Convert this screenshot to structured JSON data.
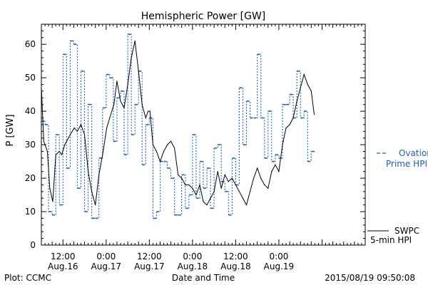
{
  "chart_data": {
    "type": "line",
    "title": "Hemispheric Power [GW]",
    "xlabel": "Date and Time",
    "ylabel": "P [GW]",
    "ylim": [
      0,
      66
    ],
    "xlim": [
      "2015-08-16T06:00",
      "2015-08-20T00:00"
    ],
    "yticks": [
      0,
      10,
      20,
      30,
      40,
      50,
      60
    ],
    "xticks": [
      {
        "t": "2015-08-16T12:00",
        "time": "12:00",
        "date": "Aug.16"
      },
      {
        "t": "2015-08-17T00:00",
        "time": "0:00",
        "date": "Aug.17"
      },
      {
        "t": "2015-08-17T12:00",
        "time": "12:00",
        "date": "Aug.17"
      },
      {
        "t": "2015-08-18T00:00",
        "time": "0:00",
        "date": "Aug.18"
      },
      {
        "t": "2015-08-18T12:00",
        "time": "12:00",
        "date": "Aug.18"
      },
      {
        "t": "2015-08-19T00:00",
        "time": "0:00",
        "date": "Aug.19"
      }
    ],
    "legend_placement": "right",
    "series": [
      {
        "name": "SWPC 5-min HPI",
        "style": "solid",
        "color": "#000000",
        "x": [
          "2015-08-16T06:00",
          "2015-08-16T06:40",
          "2015-08-16T07:40",
          "2015-08-16T08:20",
          "2015-08-16T09:10",
          "2015-08-16T10:00",
          "2015-08-16T11:00",
          "2015-08-16T11:40",
          "2015-08-16T12:30",
          "2015-08-16T14:00",
          "2015-08-16T15:10",
          "2015-08-16T16:00",
          "2015-08-16T17:00",
          "2015-08-16T18:00",
          "2015-08-16T19:00",
          "2015-08-16T20:00",
          "2015-08-16T21:00",
          "2015-08-16T22:00",
          "2015-08-16T23:10",
          "2015-08-17T00:10",
          "2015-08-17T01:00",
          "2015-08-17T02:10",
          "2015-08-17T03:00",
          "2015-08-17T04:00",
          "2015-08-17T05:00",
          "2015-08-17T06:00",
          "2015-08-17T07:00",
          "2015-08-17T08:00",
          "2015-08-17T09:00",
          "2015-08-17T10:00",
          "2015-08-17T11:00",
          "2015-08-17T11:40",
          "2015-08-17T12:10",
          "2015-08-17T13:00",
          "2015-08-17T14:00",
          "2015-08-17T15:00",
          "2015-08-17T16:00",
          "2015-08-17T17:00",
          "2015-08-17T18:00",
          "2015-08-17T19:00",
          "2015-08-17T20:00",
          "2015-08-17T21:00",
          "2015-08-17T22:00",
          "2015-08-17T23:00",
          "2015-08-18T00:00",
          "2015-08-18T01:00",
          "2015-08-18T02:00",
          "2015-08-18T03:00",
          "2015-08-18T04:00",
          "2015-08-18T05:00",
          "2015-08-18T06:00",
          "2015-08-18T07:00",
          "2015-08-18T08:00",
          "2015-08-18T09:00",
          "2015-08-18T10:00",
          "2015-08-18T11:00",
          "2015-08-18T12:00",
          "2015-08-18T13:00",
          "2015-08-18T14:00",
          "2015-08-18T15:00",
          "2015-08-18T16:00",
          "2015-08-18T17:00",
          "2015-08-18T18:00",
          "2015-08-18T19:00",
          "2015-08-18T20:00",
          "2015-08-18T21:00",
          "2015-08-18T22:00",
          "2015-08-18T23:00",
          "2015-08-19T00:00",
          "2015-08-19T01:00",
          "2015-08-19T02:00",
          "2015-08-19T03:00",
          "2015-08-19T04:00",
          "2015-08-19T05:00",
          "2015-08-19T06:00",
          "2015-08-19T07:00",
          "2015-08-19T08:00",
          "2015-08-19T09:00",
          "2015-08-19T09:50"
        ],
        "values": [
          47,
          31,
          28,
          17,
          13,
          27,
          28,
          27,
          30,
          33,
          35,
          34,
          36,
          33,
          22,
          16,
          12,
          21,
          28,
          35,
          38,
          42,
          49,
          43,
          41,
          48,
          56,
          61,
          52,
          42,
          38,
          40,
          40,
          30,
          28,
          25,
          28,
          30,
          31,
          29,
          21,
          20,
          18,
          18,
          17,
          15,
          18,
          13,
          12,
          14,
          16,
          22,
          17,
          21,
          19,
          20,
          18,
          16,
          14,
          12,
          16,
          20,
          23,
          20,
          18,
          17,
          22,
          24,
          22,
          30,
          35,
          36,
          38,
          43,
          47,
          51,
          48,
          46,
          39
        ]
      },
      {
        "name": "Ovation Prime HPI",
        "style": "dashed",
        "color": "#1f5fbf",
        "x": [
          "2015-08-16T06:00",
          "2015-08-16T07:00",
          "2015-08-16T08:00",
          "2015-08-16T09:00",
          "2015-08-16T10:00",
          "2015-08-16T11:00",
          "2015-08-16T12:00",
          "2015-08-16T13:00",
          "2015-08-16T14:00",
          "2015-08-16T15:00",
          "2015-08-16T16:00",
          "2015-08-16T17:00",
          "2015-08-16T18:00",
          "2015-08-16T19:00",
          "2015-08-16T20:00",
          "2015-08-16T21:00",
          "2015-08-16T22:00",
          "2015-08-16T23:00",
          "2015-08-17T00:00",
          "2015-08-17T01:00",
          "2015-08-17T02:00",
          "2015-08-17T03:00",
          "2015-08-17T04:00",
          "2015-08-17T05:00",
          "2015-08-17T06:00",
          "2015-08-17T07:00",
          "2015-08-17T08:00",
          "2015-08-17T09:00",
          "2015-08-17T10:00",
          "2015-08-17T11:00",
          "2015-08-17T12:00",
          "2015-08-17T13:00",
          "2015-08-17T14:00",
          "2015-08-17T15:00",
          "2015-08-17T16:00",
          "2015-08-17T17:00",
          "2015-08-17T18:00",
          "2015-08-17T19:00",
          "2015-08-17T20:00",
          "2015-08-17T21:00",
          "2015-08-17T22:00",
          "2015-08-17T23:00",
          "2015-08-18T00:00",
          "2015-08-18T01:00",
          "2015-08-18T02:00",
          "2015-08-18T03:00",
          "2015-08-18T04:00",
          "2015-08-18T05:00",
          "2015-08-18T06:00",
          "2015-08-18T07:00",
          "2015-08-18T08:00",
          "2015-08-18T09:00",
          "2015-08-18T10:00",
          "2015-08-18T11:00",
          "2015-08-18T12:00",
          "2015-08-18T13:00",
          "2015-08-18T14:00",
          "2015-08-18T15:00",
          "2015-08-18T16:00",
          "2015-08-18T17:00",
          "2015-08-18T18:00",
          "2015-08-18T19:00",
          "2015-08-18T20:00",
          "2015-08-18T21:00",
          "2015-08-18T22:00",
          "2015-08-18T23:00",
          "2015-08-19T00:00",
          "2015-08-19T01:00",
          "2015-08-19T02:00",
          "2015-08-19T03:00",
          "2015-08-19T04:00",
          "2015-08-19T05:00",
          "2015-08-19T06:00",
          "2015-08-19T07:00",
          "2015-08-19T08:00",
          "2015-08-19T09:00"
        ],
        "values": [
          37,
          36,
          10,
          9,
          33,
          12,
          57,
          23,
          61,
          60,
          17,
          52,
          10,
          42,
          8,
          8,
          26,
          41,
          51,
          50,
          31,
          44,
          46,
          27,
          63,
          33,
          42,
          52,
          24,
          36,
          38,
          8,
          10,
          25,
          25,
          23,
          20,
          9,
          9,
          21,
          11,
          15,
          33,
          14,
          25,
          17,
          23,
          11,
          29,
          30,
          19,
          16,
          9,
          26,
          18,
          47,
          30,
          43,
          38,
          38,
          57,
          38,
          26,
          40,
          25,
          27,
          26,
          42,
          42,
          45,
          38,
          52,
          38,
          40,
          25,
          28
        ]
      }
    ]
  },
  "labels": {
    "legend_ovation_line1": "Ovation",
    "legend_ovation_line2": "Prime HPI",
    "legend_swpc_line1": "SWPC",
    "legend_swpc_line2": "5-min HPI",
    "footer_left": "Plot: CCMC",
    "footer_center": "Date and Time",
    "footer_right": "2015/08/19 09:50:08"
  },
  "colors": {
    "swpc": "#000000",
    "ovation": "#1f5fbf",
    "axis": "#000000"
  }
}
